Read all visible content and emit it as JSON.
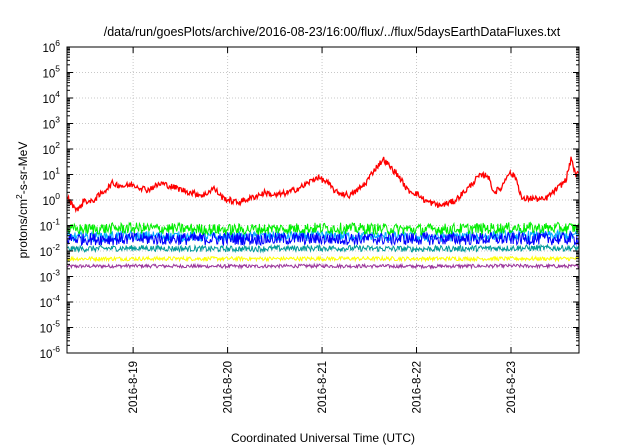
{
  "chart_data": {
    "type": "line",
    "title": "/data/run/goesPlots/archive/2016-08-23/16:00/flux/../flux/5daysEarthDataFluxes.txt",
    "xlabel": "Coordinated Universal Time (UTC)",
    "ylabel": {
      "base": "protons/cm",
      "sup": "2",
      "rest": "-s-sr-MeV"
    },
    "yscale": "log",
    "ylim_exp": [
      -6,
      6
    ],
    "ytick_base": "10",
    "yticks_exp": [
      "-6",
      "-5",
      "-4",
      "-3",
      "-2",
      "-1",
      "0",
      "1",
      "2",
      "3",
      "4",
      "5",
      "6"
    ],
    "xlim_days": [
      18.3,
      23.72
    ],
    "xticks": [
      {
        "label": "2016-8-19",
        "day": 19
      },
      {
        "label": "2016-8-20",
        "day": 20
      },
      {
        "label": "2016-8-21",
        "day": 21
      },
      {
        "label": "2016-8-22",
        "day": 22
      },
      {
        "label": "2016-8-23",
        "day": 23
      }
    ],
    "grid": true,
    "legend": "none",
    "series": [
      {
        "color": "#ff0000",
        "noise": 0.12,
        "points": [
          [
            18.3,
            1.3
          ],
          [
            18.35,
            0.7
          ],
          [
            18.42,
            0.4
          ],
          [
            18.48,
            1.0
          ],
          [
            18.55,
            0.8
          ],
          [
            18.65,
            1.6
          ],
          [
            18.78,
            4.5
          ],
          [
            18.9,
            3.5
          ],
          [
            19.0,
            4.0
          ],
          [
            19.15,
            2.5
          ],
          [
            19.3,
            4.5
          ],
          [
            19.45,
            3.0
          ],
          [
            19.6,
            2.0
          ],
          [
            19.75,
            1.5
          ],
          [
            19.85,
            3.0
          ],
          [
            19.95,
            1.2
          ],
          [
            20.1,
            0.8
          ],
          [
            20.25,
            1.2
          ],
          [
            20.4,
            2.0
          ],
          [
            20.5,
            1.5
          ],
          [
            20.65,
            2.0
          ],
          [
            20.8,
            3.5
          ],
          [
            20.95,
            8.0
          ],
          [
            21.05,
            5.0
          ],
          [
            21.15,
            2.0
          ],
          [
            21.3,
            1.5
          ],
          [
            21.45,
            4.0
          ],
          [
            21.55,
            15.0
          ],
          [
            21.65,
            40.0
          ],
          [
            21.72,
            20.0
          ],
          [
            21.82,
            8.0
          ],
          [
            21.9,
            2.5
          ],
          [
            22.0,
            1.8
          ],
          [
            22.1,
            0.9
          ],
          [
            22.25,
            0.6
          ],
          [
            22.4,
            0.9
          ],
          [
            22.55,
            3.0
          ],
          [
            22.65,
            8.0
          ],
          [
            22.75,
            10.0
          ],
          [
            22.82,
            2.0
          ],
          [
            22.9,
            3.0
          ],
          [
            22.97,
            12.0
          ],
          [
            23.05,
            8.0
          ],
          [
            23.12,
            1.0
          ],
          [
            23.2,
            1.2
          ],
          [
            23.35,
            1.0
          ],
          [
            23.5,
            3.0
          ],
          [
            23.58,
            6.0
          ],
          [
            23.64,
            45.0
          ],
          [
            23.68,
            10.0
          ],
          [
            23.72,
            10.0
          ]
        ]
      },
      {
        "color": "#00ee00",
        "noise": 0.22,
        "points": [
          [
            18.3,
            0.07
          ],
          [
            19.0,
            0.08
          ],
          [
            20.0,
            0.07
          ],
          [
            21.0,
            0.08
          ],
          [
            22.0,
            0.07
          ],
          [
            23.0,
            0.08
          ],
          [
            23.72,
            0.08
          ]
        ]
      },
      {
        "color": "#0000ff",
        "noise": 0.25,
        "points": [
          [
            18.3,
            0.03
          ],
          [
            19.0,
            0.03
          ],
          [
            20.0,
            0.03
          ],
          [
            21.0,
            0.03
          ],
          [
            22.0,
            0.03
          ],
          [
            23.0,
            0.03
          ],
          [
            23.72,
            0.03
          ]
        ]
      },
      {
        "color": "#00aaff",
        "noise": 0.2,
        "points": [
          [
            18.3,
            0.035
          ],
          [
            19.0,
            0.04
          ],
          [
            20.0,
            0.035
          ],
          [
            21.0,
            0.04
          ],
          [
            22.0,
            0.035
          ],
          [
            23.0,
            0.04
          ],
          [
            23.72,
            0.04
          ]
        ]
      },
      {
        "color": "#009999",
        "noise": 0.12,
        "points": [
          [
            18.3,
            0.012
          ],
          [
            19.0,
            0.013
          ],
          [
            20.0,
            0.012
          ],
          [
            21.0,
            0.013
          ],
          [
            22.0,
            0.012
          ],
          [
            23.0,
            0.013
          ],
          [
            23.72,
            0.013
          ]
        ]
      },
      {
        "color": "#ffff00",
        "noise": 0.08,
        "points": [
          [
            18.3,
            0.005
          ],
          [
            19.0,
            0.005
          ],
          [
            20.0,
            0.005
          ],
          [
            21.0,
            0.005
          ],
          [
            22.0,
            0.005
          ],
          [
            23.0,
            0.005
          ],
          [
            23.72,
            0.005
          ]
        ]
      },
      {
        "color": "#993399",
        "noise": 0.07,
        "points": [
          [
            18.3,
            0.0025
          ],
          [
            19.0,
            0.0026
          ],
          [
            20.0,
            0.0025
          ],
          [
            21.0,
            0.0026
          ],
          [
            22.0,
            0.0025
          ],
          [
            23.0,
            0.0026
          ],
          [
            23.72,
            0.0025
          ]
        ]
      }
    ]
  }
}
